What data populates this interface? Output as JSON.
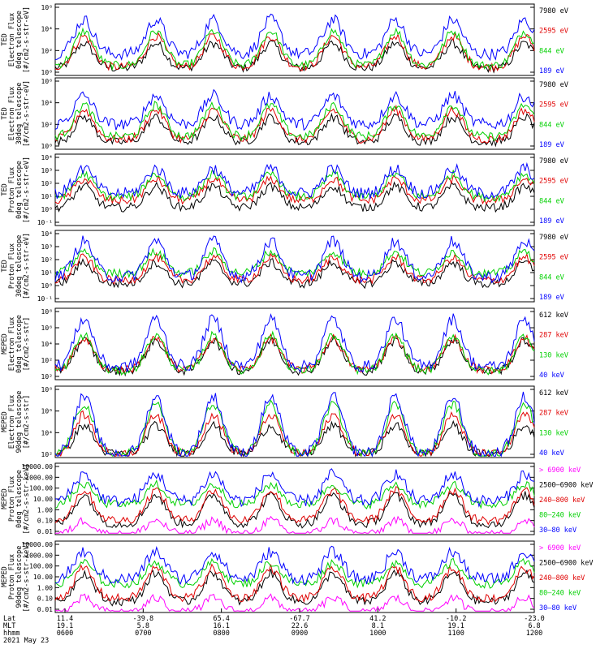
{
  "colors": {
    "black": "#000000",
    "red": "#e00000",
    "green": "#00d000",
    "blue": "#0000ff",
    "magenta": "#ff00ff"
  },
  "chart_data": [
    {
      "type": "line",
      "ylabel": [
        "TED",
        "Electron Flux",
        "0deg telescope",
        "[#/cm2-s-str-eV]"
      ],
      "yaxis": {
        "scale": "log",
        "ticks": [
          "10⁶",
          "10⁴",
          "10²",
          "10⁰"
        ]
      },
      "series": [
        {
          "name": "7980 eV",
          "color": "black",
          "level": [
            0.1,
            0.45
          ]
        },
        {
          "name": "2595 eV",
          "color": "red",
          "level": [
            0.12,
            0.55
          ]
        },
        {
          "name": "844 eV",
          "color": "green",
          "level": [
            0.14,
            0.62
          ]
        },
        {
          "name": "189 eV",
          "color": "blue",
          "level": [
            0.3,
            0.78
          ]
        }
      ]
    },
    {
      "type": "line",
      "ylabel": [
        "TED",
        "Electron Flux",
        "30deg telescope",
        "[#/cm2-s-str-eV]"
      ],
      "yaxis": {
        "scale": "log",
        "ticks": [
          "10⁶",
          "10⁴",
          "10²",
          "10⁰"
        ]
      },
      "series": [
        {
          "name": "7980 eV",
          "color": "black",
          "level": [
            0.1,
            0.45
          ]
        },
        {
          "name": "2595 eV",
          "color": "red",
          "level": [
            0.14,
            0.55
          ]
        },
        {
          "name": "844 eV",
          "color": "green",
          "level": [
            0.18,
            0.62
          ]
        },
        {
          "name": "189 eV",
          "color": "blue",
          "level": [
            0.35,
            0.75
          ]
        }
      ]
    },
    {
      "type": "line",
      "ylabel": [
        "TED",
        "Proton Flux",
        "0deg telescope",
        "[#/cm2-s-str-eV]"
      ],
      "yaxis": {
        "scale": "log",
        "ticks": [
          "10⁴",
          "10³",
          "10²",
          "10¹",
          "10⁰",
          "10⁻¹"
        ]
      },
      "series": [
        {
          "name": "7980 eV",
          "color": "black",
          "level": [
            0.25,
            0.55
          ]
        },
        {
          "name": "2595 eV",
          "color": "red",
          "level": [
            0.35,
            0.65
          ]
        },
        {
          "name": "844 eV",
          "color": "green",
          "level": [
            0.4,
            0.72
          ]
        },
        {
          "name": "189 eV",
          "color": "blue",
          "level": [
            0.45,
            0.8
          ]
        }
      ]
    },
    {
      "type": "line",
      "ylabel": [
        "TED",
        "Proton Flux",
        "30deg telescope",
        "[#/cm2-s-str-eV]"
      ],
      "yaxis": {
        "scale": "log",
        "ticks": [
          "10⁴",
          "10³",
          "10²",
          "10¹",
          "10⁰",
          "10⁻¹"
        ]
      },
      "series": [
        {
          "name": "7980 eV",
          "color": "black",
          "level": [
            0.25,
            0.55
          ]
        },
        {
          "name": "2595 eV",
          "color": "red",
          "level": [
            0.3,
            0.62
          ]
        },
        {
          "name": "844 eV",
          "color": "green",
          "level": [
            0.4,
            0.7
          ]
        },
        {
          "name": "189 eV",
          "color": "blue",
          "level": [
            0.35,
            0.85
          ]
        }
      ]
    },
    {
      "type": "line",
      "ylabel": [
        "MEPED",
        "Electron Flux",
        "0deg telescope",
        "[#/cm2-s-str]"
      ],
      "yaxis": {
        "scale": "log",
        "ticks": [
          "10⁸",
          "10⁶",
          "10⁴",
          "10²",
          "10²"
        ]
      },
      "series": [
        {
          "name": "612 keV",
          "color": "black",
          "level": [
            0.12,
            0.55
          ]
        },
        {
          "name": "287 keV",
          "color": "red",
          "level": [
            0.14,
            0.58
          ]
        },
        {
          "name": "130 keV",
          "color": "green",
          "level": [
            0.12,
            0.62
          ]
        },
        {
          "name": "40 keV",
          "color": "blue",
          "level": [
            0.18,
            0.85
          ]
        }
      ]
    },
    {
      "type": "line",
      "ylabel": [
        "MEPED",
        "Electron Flux",
        "90deg telescope",
        "[#/cm2-s-str]"
      ],
      "yaxis": {
        "scale": "log",
        "ticks": [
          "10⁸",
          "10⁶",
          "10⁴",
          "10²"
        ]
      },
      "series": [
        {
          "name": "612 keV",
          "color": "black",
          "level": [
            0.05,
            0.45
          ]
        },
        {
          "name": "287 keV",
          "color": "red",
          "level": [
            0.05,
            0.6
          ]
        },
        {
          "name": "130 keV",
          "color": "green",
          "level": [
            0.05,
            0.75
          ]
        },
        {
          "name": "40 keV",
          "color": "blue",
          "level": [
            0.05,
            0.85
          ]
        }
      ]
    },
    {
      "type": "line",
      "ylabel": [
        "MEPED",
        "Proton Flux",
        "0deg telescope",
        "[#/cm2-s-str-keV]"
      ],
      "yaxis": {
        "scale": "log",
        "ticks": [
          "10000.00",
          "1000.00",
          "100.00",
          "10.00",
          "1.00",
          "0.10",
          "0.01"
        ]
      },
      "series": [
        {
          "name": "> 6900 keV",
          "color": "magenta",
          "level": [
            0.0,
            0.2
          ]
        },
        {
          "name": "2500–6900 keV",
          "color": "black",
          "level": [
            0.15,
            0.55
          ]
        },
        {
          "name": "240–800 keV",
          "color": "red",
          "level": [
            0.2,
            0.62
          ]
        },
        {
          "name": "80–240 keV",
          "color": "green",
          "level": [
            0.42,
            0.7
          ]
        },
        {
          "name": "30–80 keV",
          "color": "blue",
          "level": [
            0.47,
            0.85
          ]
        }
      ]
    },
    {
      "type": "line",
      "ylabel": [
        "MEPED",
        "Proton Flux",
        "90deg telescope",
        "[#/cm2-s-str-keV]"
      ],
      "yaxis": {
        "scale": "log",
        "ticks": [
          "10000.00",
          "1000.00",
          "100.00",
          "10.00",
          "1.00",
          "0.10",
          "0.01"
        ]
      },
      "series": [
        {
          "name": "> 6900 keV",
          "color": "magenta",
          "level": [
            0.0,
            0.2
          ]
        },
        {
          "name": "2500–6900 keV",
          "color": "black",
          "level": [
            0.15,
            0.55
          ]
        },
        {
          "name": "240–800 keV",
          "color": "red",
          "level": [
            0.2,
            0.62
          ]
        },
        {
          "name": "80–240 keV",
          "color": "green",
          "level": [
            0.4,
            0.7
          ]
        },
        {
          "name": "30–80 keV",
          "color": "blue",
          "level": [
            0.47,
            0.85
          ]
        }
      ]
    }
  ],
  "xaxis": {
    "rows": [
      {
        "label": "Lat",
        "values": [
          "11.4",
          "-39.8",
          "65.4",
          "-67.7",
          "41.2",
          "-10.2",
          "-23.0"
        ]
      },
      {
        "label": "MLT",
        "values": [
          "19.1",
          "5.8",
          "16.1",
          "22.6",
          "8.1",
          "19.1",
          "6.8"
        ]
      },
      {
        "label": "hhmm",
        "values": [
          "0600",
          "0700",
          "0800",
          "0900",
          "1000",
          "1100",
          "1200"
        ]
      }
    ],
    "date": "2021 May 23"
  }
}
